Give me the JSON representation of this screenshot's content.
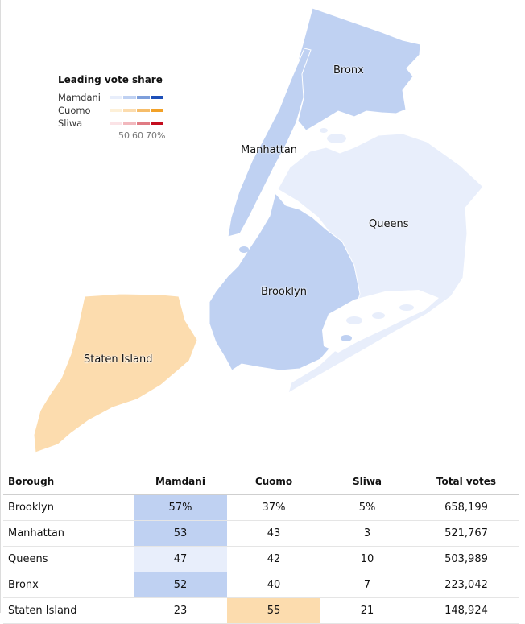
{
  "legend": {
    "title": "Leading vote share",
    "rows": [
      {
        "name": "Mamdani",
        "colors": [
          "#e8eefb",
          "#bfd1f2",
          "#7e9fdb",
          "#1d4fb8"
        ]
      },
      {
        "name": "Cuomo",
        "colors": [
          "#fdf0d8",
          "#fcdcae",
          "#f6bd6a",
          "#f2a128"
        ]
      },
      {
        "name": "Sliwa",
        "colors": [
          "#fbe3e6",
          "#f2b8bd",
          "#e07b83",
          "#c40d1e"
        ]
      }
    ],
    "ticks": [
      "50",
      "60",
      "70%"
    ]
  },
  "map": {
    "boroughs": [
      {
        "name": "Bronx",
        "leader": "Mamdani",
        "color": "#bfd1f2"
      },
      {
        "name": "Manhattan",
        "leader": "Mamdani",
        "color": "#bfd1f2"
      },
      {
        "name": "Queens",
        "leader": "Mamdani",
        "color": "#e8eefb"
      },
      {
        "name": "Brooklyn",
        "leader": "Mamdani",
        "color": "#bfd1f2"
      },
      {
        "name": "Staten Island",
        "leader": "Cuomo",
        "color": "#fcdcae"
      }
    ],
    "water_color": "#ffffff"
  },
  "table": {
    "headers": [
      "Borough",
      "Mamdani",
      "Cuomo",
      "Sliwa",
      "Total votes"
    ],
    "rows": [
      {
        "borough": "Brooklyn",
        "mamdani": "57%",
        "cuomo": "37%",
        "sliwa": "5%",
        "total": "658,199",
        "leader": "mamdani",
        "highlight": "#bfd1f2"
      },
      {
        "borough": "Manhattan",
        "mamdani": "53",
        "cuomo": "43",
        "sliwa": "3",
        "total": "521,767",
        "leader": "mamdani",
        "highlight": "#bfd1f2"
      },
      {
        "borough": "Queens",
        "mamdani": "47",
        "cuomo": "42",
        "sliwa": "10",
        "total": "503,989",
        "leader": "mamdani",
        "highlight": "#e8eefb"
      },
      {
        "borough": "Bronx",
        "mamdani": "52",
        "cuomo": "40",
        "sliwa": "7",
        "total": "223,042",
        "leader": "mamdani",
        "highlight": "#bfd1f2"
      },
      {
        "borough": "Staten Island",
        "mamdani": "23",
        "cuomo": "55",
        "sliwa": "21",
        "total": "148,924",
        "leader": "cuomo",
        "highlight": "#fcdcae"
      }
    ]
  }
}
